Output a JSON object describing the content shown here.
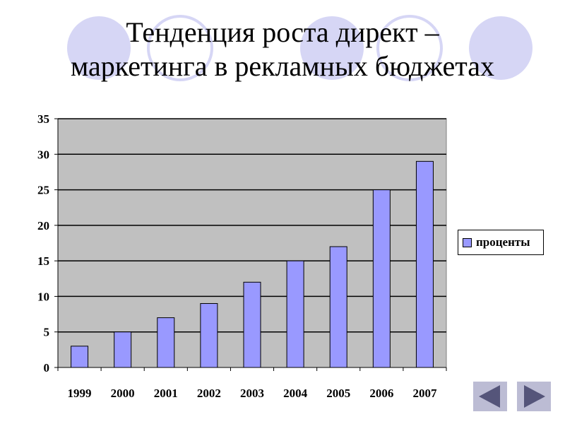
{
  "slide": {
    "title_line1": "Тенденция роста директ –",
    "title_line2": "маркетинга в рекламных бюджетах"
  },
  "legend": {
    "label": "проценты",
    "swatch_color": "#9999ff"
  },
  "nav": {
    "prev_icon": "triangle-left-icon",
    "next_icon": "triangle-right-icon"
  },
  "colors": {
    "plot_bg": "#c0c0c0",
    "bar_fill": "#9999ff",
    "decor_circle": "#d6d6f5",
    "nav_bg": "#bcbcd4",
    "nav_arrow": "#55557a"
  },
  "chart_data": {
    "type": "bar",
    "categories": [
      "1999",
      "2000",
      "2001",
      "2002",
      "2003",
      "2004",
      "2005",
      "2006",
      "2007"
    ],
    "series": [
      {
        "name": "проценты",
        "values": [
          3,
          5,
          7,
          9,
          12,
          15,
          17,
          25,
          29
        ]
      }
    ],
    "ylim": [
      0,
      35
    ],
    "yticks": [
      0,
      5,
      10,
      15,
      20,
      25,
      30,
      35
    ],
    "grid": true,
    "legend_position": "right"
  }
}
